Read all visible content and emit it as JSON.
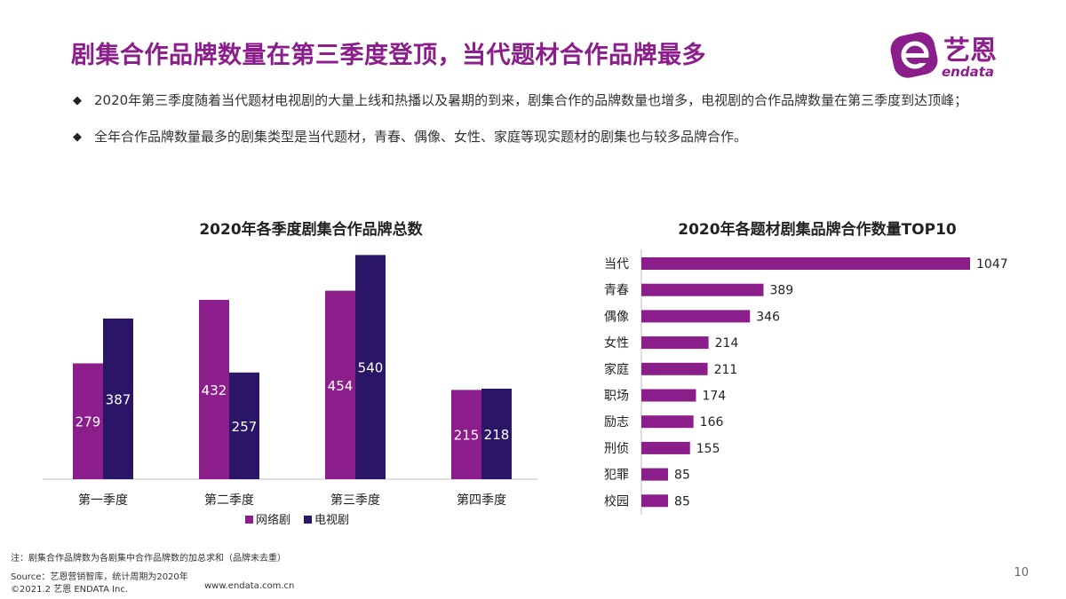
{
  "header": {
    "title": "剧集合作品牌数量在第三季度登顶，当代题材合作品牌最多",
    "logo_name": "艺恩",
    "logo_sub": "endata"
  },
  "bullets": [
    "2020年第三季度随着当代题材电视剧的大量上线和热播以及暑期的到来，剧集合作的品牌数量也增多，电视剧的合作品牌数量在第三季度到达顶峰；",
    "全年合作品牌数量最多的剧集类型是当代题材，青春、偶像、女性、家庭等现实题材的剧集也与较多品牌合作。"
  ],
  "colors": {
    "purple": "#8b1e8b",
    "navy": "#2a1566",
    "accent": "#8b1e8b"
  },
  "chart_data": [
    {
      "type": "bar",
      "title": "2020年各季度剧集合作品牌总数",
      "categories": [
        "第一季度",
        "第二季度",
        "第三季度",
        "第四季度"
      ],
      "series": [
        {
          "name": "网络剧",
          "values": [
            279,
            432,
            454,
            215
          ]
        },
        {
          "name": "电视剧",
          "values": [
            387,
            257,
            540,
            218
          ]
        }
      ],
      "ylim": [
        0,
        560
      ],
      "legend": "bottom"
    },
    {
      "type": "bar",
      "orientation": "horizontal",
      "title": "2020年各题材剧集品牌合作数量TOP10",
      "categories": [
        "当代",
        "青春",
        "偶像",
        "女性",
        "家庭",
        "职场",
        "励志",
        "刑侦",
        "犯罪",
        "校园"
      ],
      "values": [
        1047,
        389,
        346,
        214,
        211,
        174,
        166,
        155,
        85,
        85
      ],
      "xlim": [
        0,
        1100
      ]
    }
  ],
  "footer": {
    "note": "注：剧集合作品牌数为各剧集中合作品牌数的加总求和（品牌未去重）",
    "source": "Source：艺恩营销智库，统计周期为2020年",
    "copyright": "©2021.2 艺恩 ENDATA Inc.",
    "website": "www.endata.com.cn",
    "page": "10"
  }
}
